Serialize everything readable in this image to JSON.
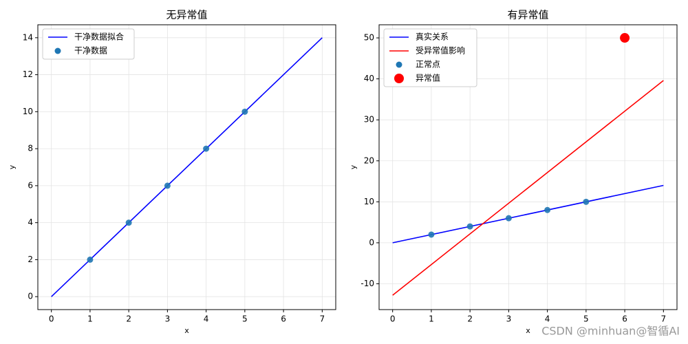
{
  "chart_data": [
    {
      "type": "line",
      "title": "无异常值",
      "x_label": "x",
      "y_label": "y",
      "xlim": [
        -0.35,
        7.35
      ],
      "ylim": [
        -0.7,
        14.7
      ],
      "xticks": [
        0,
        1,
        2,
        3,
        4,
        5,
        6,
        7
      ],
      "yticks": [
        0,
        2,
        4,
        6,
        8,
        10,
        12,
        14
      ],
      "grid": true,
      "legend": "upper-left",
      "series": [
        {
          "name": "干净数据拟合",
          "kind": "line",
          "color": "#0000ff",
          "x": [
            0,
            7
          ],
          "values": [
            0,
            14
          ]
        },
        {
          "name": "干净数据",
          "kind": "scatter",
          "color": "#1f77b4",
          "x": [
            1,
            2,
            3,
            4,
            5
          ],
          "values": [
            2,
            4,
            6,
            8,
            10
          ]
        }
      ]
    },
    {
      "type": "line",
      "title": "有异常值",
      "x_label": "x",
      "y_label": "y",
      "xlim": [
        -0.35,
        7.35
      ],
      "ylim": [
        -16.3,
        53.2
      ],
      "xticks": [
        0,
        1,
        2,
        3,
        4,
        5,
        6,
        7
      ],
      "yticks": [
        -10,
        0,
        10,
        20,
        30,
        40,
        50
      ],
      "grid": true,
      "legend": "upper-left",
      "series": [
        {
          "name": "真实关系",
          "kind": "line",
          "color": "#0000ff",
          "x": [
            0,
            7
          ],
          "values": [
            0,
            14
          ]
        },
        {
          "name": "受异常值影响",
          "kind": "line",
          "color": "#ff0000",
          "x": [
            0,
            7
          ],
          "values": [
            -12.8,
            39.6
          ]
        },
        {
          "name": "正常点",
          "kind": "scatter",
          "color": "#1f77b4",
          "x": [
            1,
            2,
            3,
            4,
            5
          ],
          "values": [
            2,
            4,
            6,
            8,
            10
          ]
        },
        {
          "name": "异常值",
          "kind": "scatter",
          "color": "#ff0000",
          "big": true,
          "x": [
            6
          ],
          "values": [
            50
          ]
        }
      ]
    }
  ],
  "watermark": "CSDN @minhuan@智循AI"
}
